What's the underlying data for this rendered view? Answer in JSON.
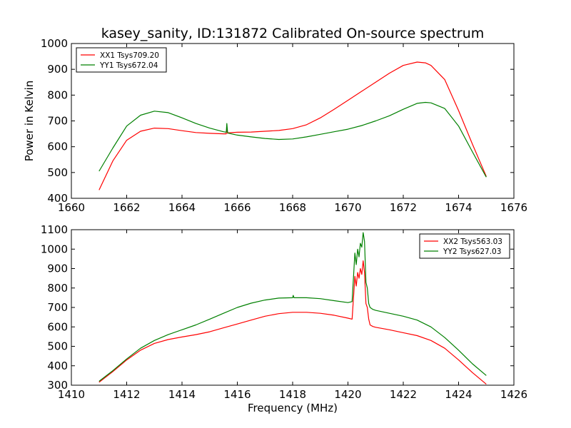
{
  "title": "kasey_sanity, ID:131872 Calibrated On-source spectrum",
  "colors": {
    "xx": "#ff0000",
    "yy": "#008000"
  },
  "chart_data": [
    {
      "type": "line",
      "xlabel": "",
      "ylabel": "Power in Kelvin",
      "xlim": [
        1660,
        1676
      ],
      "ylim": [
        400,
        1000
      ],
      "xticks": [
        1660,
        1662,
        1664,
        1666,
        1668,
        1670,
        1672,
        1674,
        1676
      ],
      "yticks": [
        400,
        500,
        600,
        700,
        800,
        900,
        1000
      ],
      "legend_position": "top-left",
      "series": [
        {
          "name": "XX1 Tsys709.20",
          "color": "#ff0000",
          "x": [
            1661.0,
            1661.5,
            1662.0,
            1662.5,
            1663.0,
            1663.5,
            1664.0,
            1664.5,
            1665.0,
            1665.5,
            1665.6,
            1665.62,
            1665.65,
            1665.7,
            1666.0,
            1666.5,
            1667.0,
            1667.5,
            1668.0,
            1668.5,
            1669.0,
            1669.5,
            1670.0,
            1670.5,
            1671.0,
            1671.5,
            1672.0,
            1672.5,
            1672.8,
            1673.0,
            1673.5,
            1674.0,
            1674.5,
            1675.0
          ],
          "y": [
            432,
            545,
            625,
            660,
            672,
            670,
            662,
            655,
            652,
            650,
            650,
            672,
            652,
            654,
            656,
            657,
            660,
            663,
            670,
            685,
            712,
            745,
            780,
            815,
            850,
            885,
            915,
            928,
            925,
            915,
            860,
            740,
            610,
            485
          ]
        },
        {
          "name": "YY1 Tsys672.04",
          "color": "#008000",
          "x": [
            1661.0,
            1661.5,
            1662.0,
            1662.5,
            1663.0,
            1663.5,
            1664.0,
            1664.5,
            1665.0,
            1665.5,
            1665.6,
            1665.62,
            1665.65,
            1665.7,
            1666.0,
            1666.5,
            1667.0,
            1667.5,
            1668.0,
            1668.5,
            1669.0,
            1669.5,
            1670.0,
            1670.5,
            1671.0,
            1671.5,
            1672.0,
            1672.5,
            1672.8,
            1673.0,
            1673.5,
            1674.0,
            1674.5,
            1675.0
          ],
          "y": [
            505,
            595,
            680,
            722,
            738,
            732,
            712,
            690,
            672,
            658,
            656,
            690,
            655,
            652,
            645,
            638,
            632,
            628,
            630,
            638,
            648,
            658,
            668,
            682,
            700,
            720,
            745,
            768,
            772,
            770,
            748,
            680,
            580,
            482
          ]
        }
      ]
    },
    {
      "type": "line",
      "xlabel": "Frequency (MHz)",
      "ylabel": "",
      "xlim": [
        1410,
        1426
      ],
      "ylim": [
        300,
        1100
      ],
      "xticks": [
        1410,
        1412,
        1414,
        1416,
        1418,
        1420,
        1422,
        1424,
        1426
      ],
      "yticks": [
        300,
        400,
        500,
        600,
        700,
        800,
        900,
        1000,
        1100
      ],
      "legend_position": "top-right",
      "series": [
        {
          "name": "XX2 Tsys563.03",
          "color": "#ff0000",
          "x": [
            1411.0,
            1411.5,
            1412.0,
            1412.5,
            1413.0,
            1413.5,
            1414.0,
            1414.5,
            1415.0,
            1415.5,
            1416.0,
            1416.5,
            1417.0,
            1417.5,
            1418.0,
            1418.5,
            1419.0,
            1419.5,
            1420.0,
            1420.15,
            1420.25,
            1420.3,
            1420.35,
            1420.4,
            1420.45,
            1420.5,
            1420.55,
            1420.6,
            1420.65,
            1420.7,
            1420.75,
            1420.8,
            1420.9,
            1421.0,
            1421.5,
            1422.0,
            1422.5,
            1423.0,
            1423.5,
            1424.0,
            1424.5,
            1425.0
          ],
          "y": [
            315,
            370,
            430,
            480,
            515,
            535,
            548,
            560,
            575,
            595,
            615,
            635,
            655,
            668,
            675,
            675,
            670,
            660,
            645,
            640,
            860,
            810,
            880,
            850,
            900,
            870,
            940,
            880,
            720,
            700,
            640,
            610,
            602,
            598,
            585,
            570,
            555,
            530,
            490,
            430,
            365,
            305
          ]
        },
        {
          "name": "YY2 Tsys627.03",
          "color": "#008000",
          "x": [
            1411.0,
            1411.5,
            1412.0,
            1412.5,
            1413.0,
            1413.5,
            1414.0,
            1414.5,
            1415.0,
            1415.5,
            1416.0,
            1416.5,
            1417.0,
            1417.5,
            1418.0,
            1418.02,
            1418.05,
            1418.5,
            1419.0,
            1419.5,
            1420.0,
            1420.15,
            1420.25,
            1420.3,
            1420.35,
            1420.4,
            1420.45,
            1420.5,
            1420.55,
            1420.6,
            1420.65,
            1420.7,
            1420.75,
            1420.8,
            1420.9,
            1421.0,
            1421.5,
            1422.0,
            1422.5,
            1423.0,
            1423.5,
            1424.0,
            1424.5,
            1425.0
          ],
          "y": [
            320,
            375,
            435,
            490,
            530,
            560,
            585,
            610,
            640,
            670,
            700,
            722,
            738,
            748,
            750,
            762,
            750,
            750,
            745,
            735,
            725,
            730,
            980,
            920,
            1000,
            960,
            1030,
            1010,
            1085,
            1040,
            830,
            800,
            720,
            700,
            690,
            685,
            670,
            655,
            635,
            600,
            545,
            480,
            410,
            350
          ]
        }
      ]
    }
  ]
}
